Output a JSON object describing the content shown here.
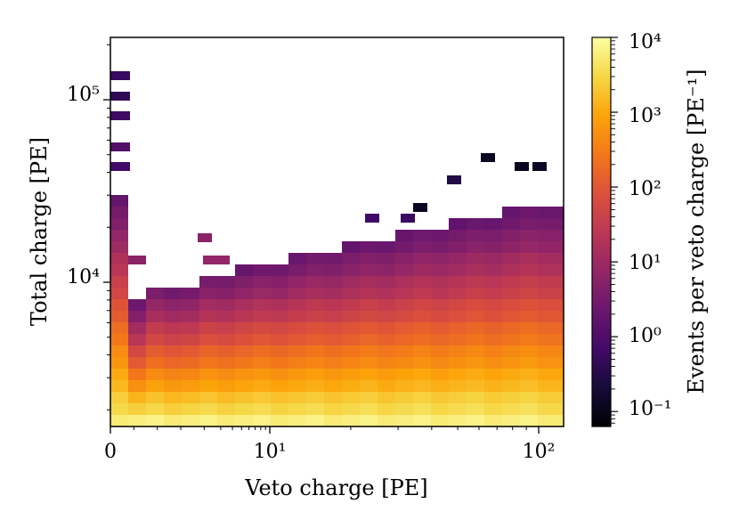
{
  "chart_data": {
    "type": "heatmap",
    "title": "",
    "xlabel": "Veto charge [PE]",
    "ylabel": "Total charge [PE]",
    "colorbar_label": "Events per veto charge [PE⁻¹]",
    "xscale": "symlog",
    "yscale": "log",
    "xlim": [
      0,
      120
    ],
    "ylim": [
      1500,
      200000
    ],
    "x_tick_labels": [
      "0",
      "10¹",
      "10²"
    ],
    "y_tick_labels": [
      "10⁴",
      "10⁵"
    ],
    "colorbar_tick_labels": [
      "10⁻¹",
      "10⁰",
      "10¹",
      "10²",
      "10³",
      "10⁴"
    ],
    "color_range": [
      0.06,
      10000
    ],
    "colormap": "inferno",
    "grid": false
  }
}
